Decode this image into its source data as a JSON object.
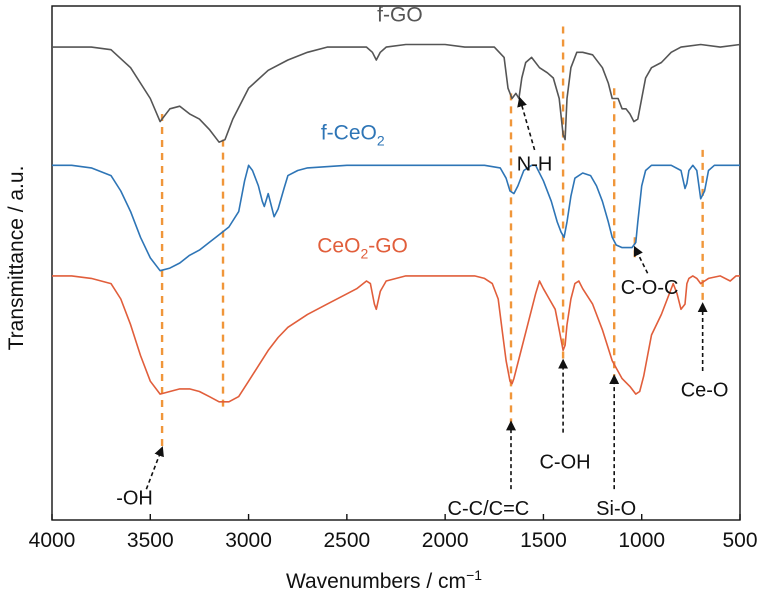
{
  "chart_data": {
    "type": "line",
    "xlabel": "Wavenumbers / cm",
    "xlabel_superscript": "−1",
    "ylabel": "Transmittance / a.u.",
    "xlim": [
      4000,
      500
    ],
    "x_reversed": true,
    "x_ticks": [
      4000,
      3500,
      3000,
      2500,
      2000,
      1500,
      1000,
      500
    ],
    "x_tick_labels": [
      "4000",
      "3500",
      "3000",
      "2500",
      "2000",
      "1500",
      "1000",
      "500"
    ],
    "ylim": [
      0,
      100
    ],
    "y_ticks": [],
    "grid": false,
    "legend": "none (labels placed next to each trace)",
    "series": [
      {
        "name": "f-GO",
        "name_main": "f-GO",
        "name_sub": "",
        "name_after": "",
        "color": "#555555",
        "points": [
          [
            4000,
            92
          ],
          [
            3800,
            92
          ],
          [
            3700,
            91.5
          ],
          [
            3600,
            88
          ],
          [
            3500,
            82
          ],
          [
            3450,
            77.5
          ],
          [
            3400,
            80
          ],
          [
            3350,
            80.5
          ],
          [
            3300,
            79
          ],
          [
            3250,
            78
          ],
          [
            3200,
            76
          ],
          [
            3150,
            73.5
          ],
          [
            3120,
            74
          ],
          [
            3080,
            78
          ],
          [
            3000,
            84
          ],
          [
            2900,
            87.5
          ],
          [
            2800,
            89.5
          ],
          [
            2700,
            91
          ],
          [
            2600,
            92
          ],
          [
            2500,
            92
          ],
          [
            2400,
            92
          ],
          [
            2370,
            91
          ],
          [
            2350,
            89.5
          ],
          [
            2330,
            91
          ],
          [
            2300,
            92
          ],
          [
            2200,
            92.5
          ],
          [
            2000,
            92.5
          ],
          [
            1900,
            92
          ],
          [
            1800,
            92
          ],
          [
            1750,
            92
          ],
          [
            1700,
            90
          ],
          [
            1680,
            84
          ],
          [
            1660,
            82
          ],
          [
            1640,
            83
          ],
          [
            1625,
            82
          ],
          [
            1610,
            86
          ],
          [
            1590,
            89
          ],
          [
            1560,
            90
          ],
          [
            1520,
            88
          ],
          [
            1480,
            87
          ],
          [
            1450,
            86
          ],
          [
            1420,
            82
          ],
          [
            1400,
            75
          ],
          [
            1390,
            74
          ],
          [
            1380,
            82
          ],
          [
            1360,
            88
          ],
          [
            1330,
            91
          ],
          [
            1300,
            91
          ],
          [
            1250,
            90.5
          ],
          [
            1200,
            88
          ],
          [
            1170,
            85
          ],
          [
            1150,
            82
          ],
          [
            1120,
            82
          ],
          [
            1100,
            80
          ],
          [
            1080,
            80
          ],
          [
            1060,
            79
          ],
          [
            1040,
            77.5
          ],
          [
            1020,
            78
          ],
          [
            1000,
            82
          ],
          [
            980,
            86
          ],
          [
            950,
            88
          ],
          [
            900,
            89
          ],
          [
            850,
            91
          ],
          [
            800,
            92
          ],
          [
            700,
            92.5
          ],
          [
            600,
            92
          ],
          [
            500,
            92.5
          ]
        ]
      },
      {
        "name": "f-CeO2",
        "name_main": "f-CeO",
        "name_sub": "2",
        "name_after": "",
        "color": "#2E75B6",
        "points": [
          [
            4000,
            69
          ],
          [
            3900,
            69
          ],
          [
            3800,
            68.5
          ],
          [
            3700,
            67
          ],
          [
            3650,
            64
          ],
          [
            3600,
            60
          ],
          [
            3550,
            55
          ],
          [
            3500,
            51
          ],
          [
            3450,
            48.5
          ],
          [
            3400,
            49
          ],
          [
            3350,
            50
          ],
          [
            3300,
            51.5
          ],
          [
            3250,
            52.5
          ],
          [
            3200,
            54
          ],
          [
            3150,
            55.5
          ],
          [
            3100,
            57
          ],
          [
            3050,
            60
          ],
          [
            3020,
            66
          ],
          [
            3000,
            69
          ],
          [
            2980,
            68
          ],
          [
            2950,
            65
          ],
          [
            2930,
            62
          ],
          [
            2920,
            61
          ],
          [
            2900,
            63.5
          ],
          [
            2870,
            59
          ],
          [
            2850,
            60.5
          ],
          [
            2820,
            64.5
          ],
          [
            2800,
            67
          ],
          [
            2750,
            68
          ],
          [
            2700,
            68.5
          ],
          [
            2500,
            69
          ],
          [
            2000,
            69
          ],
          [
            1800,
            69
          ],
          [
            1720,
            68.5
          ],
          [
            1690,
            66.5
          ],
          [
            1670,
            64
          ],
          [
            1650,
            63.5
          ],
          [
            1630,
            65
          ],
          [
            1600,
            68
          ],
          [
            1560,
            69
          ],
          [
            1540,
            69
          ],
          [
            1500,
            66
          ],
          [
            1460,
            62
          ],
          [
            1430,
            58
          ],
          [
            1410,
            56
          ],
          [
            1395,
            55
          ],
          [
            1380,
            58
          ],
          [
            1360,
            63
          ],
          [
            1340,
            66.5
          ],
          [
            1300,
            67.5
          ],
          [
            1260,
            67
          ],
          [
            1230,
            65
          ],
          [
            1200,
            62
          ],
          [
            1170,
            58
          ],
          [
            1150,
            55
          ],
          [
            1130,
            53.5
          ],
          [
            1100,
            53
          ],
          [
            1080,
            53
          ],
          [
            1050,
            53
          ],
          [
            1040,
            53.5
          ],
          [
            1030,
            54
          ],
          [
            1020,
            58
          ],
          [
            1000,
            65
          ],
          [
            980,
            68
          ],
          [
            950,
            69
          ],
          [
            900,
            69
          ],
          [
            850,
            69
          ],
          [
            800,
            68
          ],
          [
            780,
            64.5
          ],
          [
            770,
            65.5
          ],
          [
            760,
            68
          ],
          [
            740,
            69
          ],
          [
            720,
            68
          ],
          [
            700,
            62.5
          ],
          [
            680,
            64
          ],
          [
            660,
            68
          ],
          [
            630,
            69
          ],
          [
            600,
            69
          ],
          [
            500,
            69
          ]
        ]
      },
      {
        "name": "CeO2-GO",
        "name_main": "CeO",
        "name_sub": "2",
        "name_after": "-GO",
        "color": "#E15E3B",
        "points": [
          [
            4000,
            47.5
          ],
          [
            3900,
            47.5
          ],
          [
            3800,
            47
          ],
          [
            3700,
            46
          ],
          [
            3650,
            43
          ],
          [
            3600,
            38
          ],
          [
            3550,
            32
          ],
          [
            3500,
            27
          ],
          [
            3450,
            24.5
          ],
          [
            3400,
            25
          ],
          [
            3350,
            25.5
          ],
          [
            3300,
            25.5
          ],
          [
            3250,
            25
          ],
          [
            3200,
            24
          ],
          [
            3150,
            23
          ],
          [
            3100,
            23
          ],
          [
            3050,
            24
          ],
          [
            3000,
            27
          ],
          [
            2950,
            30
          ],
          [
            2900,
            33
          ],
          [
            2850,
            35.5
          ],
          [
            2800,
            37.5
          ],
          [
            2700,
            40
          ],
          [
            2600,
            42
          ],
          [
            2500,
            44
          ],
          [
            2450,
            45
          ],
          [
            2400,
            46.5
          ],
          [
            2380,
            46
          ],
          [
            2360,
            42
          ],
          [
            2350,
            41
          ],
          [
            2330,
            44.5
          ],
          [
            2300,
            46.5
          ],
          [
            2200,
            47.5
          ],
          [
            2000,
            47.5
          ],
          [
            1850,
            47.5
          ],
          [
            1800,
            47
          ],
          [
            1760,
            46
          ],
          [
            1730,
            43
          ],
          [
            1710,
            37
          ],
          [
            1690,
            31
          ],
          [
            1670,
            27
          ],
          [
            1660,
            26.5
          ],
          [
            1650,
            27.5
          ],
          [
            1620,
            32
          ],
          [
            1580,
            38
          ],
          [
            1540,
            44
          ],
          [
            1520,
            46.5
          ],
          [
            1500,
            45
          ],
          [
            1470,
            43
          ],
          [
            1440,
            41
          ],
          [
            1420,
            37
          ],
          [
            1400,
            33
          ],
          [
            1390,
            34
          ],
          [
            1380,
            38
          ],
          [
            1360,
            43
          ],
          [
            1340,
            46
          ],
          [
            1320,
            46.5
          ],
          [
            1300,
            45
          ],
          [
            1250,
            42
          ],
          [
            1200,
            37
          ],
          [
            1150,
            31
          ],
          [
            1100,
            27.5
          ],
          [
            1060,
            26
          ],
          [
            1030,
            24.5
          ],
          [
            1010,
            25
          ],
          [
            990,
            28
          ],
          [
            970,
            32
          ],
          [
            950,
            36
          ],
          [
            900,
            40
          ],
          [
            870,
            43
          ],
          [
            840,
            46
          ],
          [
            820,
            44
          ],
          [
            800,
            41
          ],
          [
            780,
            42
          ],
          [
            770,
            46
          ],
          [
            760,
            47
          ],
          [
            740,
            47.5
          ],
          [
            720,
            47
          ],
          [
            700,
            46
          ],
          [
            680,
            46.5
          ],
          [
            660,
            47
          ],
          [
            600,
            47.5
          ],
          [
            550,
            46.5
          ],
          [
            520,
            47.5
          ],
          [
            500,
            47.5
          ]
        ]
      }
    ],
    "vertical_markers": [
      {
        "x": 3440,
        "y_top": 79,
        "y_bottom": 14
      },
      {
        "x": 3130,
        "y_top": 74,
        "y_bottom": 21
      },
      {
        "x": 1665,
        "y_top": 83,
        "y_bottom": 19
      },
      {
        "x": 1400,
        "y_top": 96,
        "y_bottom": 31
      },
      {
        "x": 1140,
        "y_top": 84,
        "y_bottom": 28
      },
      {
        "x": 1035,
        "y_top": 55,
        "y_bottom": 51
      },
      {
        "x": 690,
        "y_top": 72,
        "y_bottom": 42
      }
    ],
    "annotations": [
      {
        "label": "-OH",
        "text_x": 3580,
        "text_y": 3,
        "arrow_from": [
          3520,
          6
        ],
        "arrow_to": [
          3440,
          14
        ]
      },
      {
        "label": "N-H",
        "text_x": 1545,
        "text_y": 68,
        "arrow_from": [
          1545,
          72
        ],
        "arrow_to": [
          1620,
          82
        ]
      },
      {
        "label": "C-C/C=C",
        "text_x": 1780,
        "text_y": 1,
        "arrow_from": [
          1665,
          6
        ],
        "arrow_to": [
          1665,
          19
        ]
      },
      {
        "label": "C-OH",
        "text_x": 1390,
        "text_y": 10,
        "arrow_from": [
          1400,
          17
        ],
        "arrow_to": [
          1400,
          31
        ]
      },
      {
        "label": "Si-O",
        "text_x": 1130,
        "text_y": 1,
        "arrow_from": [
          1140,
          6
        ],
        "arrow_to": [
          1140,
          28
        ]
      },
      {
        "label": "C-O-C",
        "text_x": 960,
        "text_y": 44,
        "arrow_from": [
          970,
          48
        ],
        "arrow_to": [
          1035,
          53
        ]
      },
      {
        "label": "Ce-O",
        "text_x": 680,
        "text_y": 24,
        "arrow_from": [
          690,
          29
        ],
        "arrow_to": [
          690,
          42
        ]
      }
    ],
    "marker_color": "#F0963A"
  }
}
